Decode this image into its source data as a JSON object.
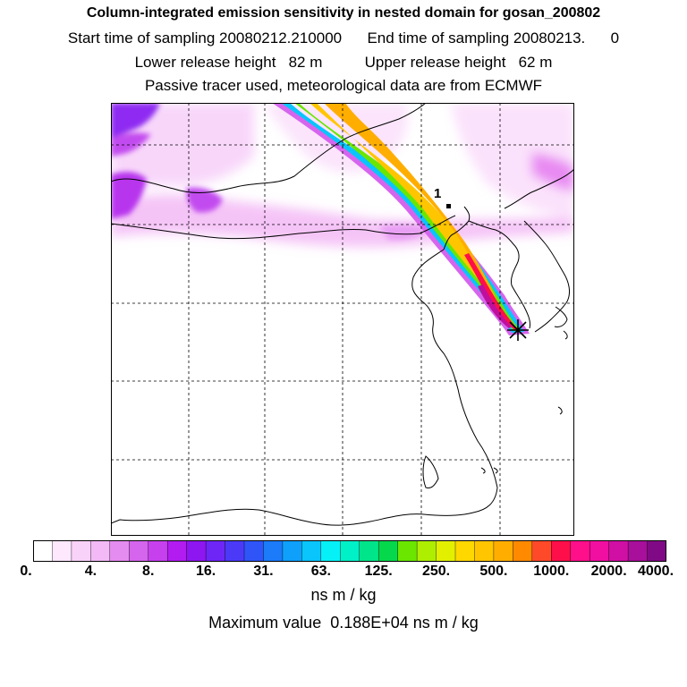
{
  "header": {
    "title": "Column-integrated emission sensitivity in nested domain for gosan_200802",
    "sampling_line": "Start time of sampling 20080212.210000      End time of sampling 20080213.      0",
    "release_line": "Lower release height   82 m          Upper release height   62 m",
    "tracer_line": "Passive tracer used, meteorological data are from ECMWF"
  },
  "map": {
    "receptor_marker": "*",
    "point_label": "1"
  },
  "colorbar": {
    "colors": [
      "#ffffff",
      "#fde8fd",
      "#f9d2fa",
      "#f3b9f6",
      "#e58cf0",
      "#d665ee",
      "#c740ee",
      "#b21cf1",
      "#8e16f0",
      "#6e26f7",
      "#4a3af8",
      "#2f55f8",
      "#1b7bf9",
      "#0ea0fb",
      "#09c5fb",
      "#06f1f7",
      "#00f0c8",
      "#00e48a",
      "#06d84c",
      "#6ae600",
      "#aeee00",
      "#e2f000",
      "#ffd800",
      "#ffc600",
      "#ffae00",
      "#ff8a00",
      "#ff4a2a",
      "#ff0f4a",
      "#ff0f8a",
      "#f00fa0",
      "#d00fa4",
      "#a80f9a",
      "#800a86"
    ],
    "ticks": [
      "0.",
      "4.",
      "8.",
      "16.",
      "31.",
      "63.",
      "125.",
      "250.",
      "500.",
      "1000.",
      "2000.",
      "4000."
    ],
    "units": "ns m / kg",
    "max_value": "Maximum value  0.188E+04 ns m / kg"
  }
}
